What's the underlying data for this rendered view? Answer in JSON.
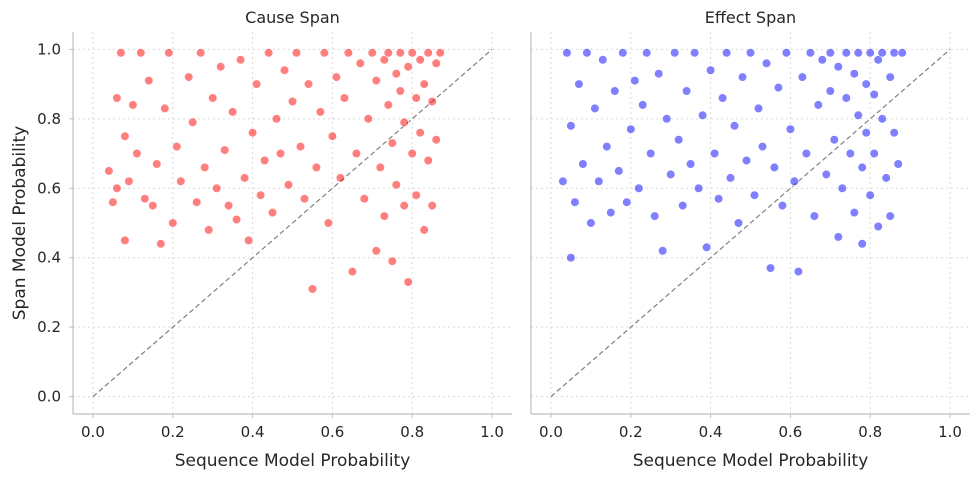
{
  "figure": {
    "ylabel_shared": "Span Model Probability"
  },
  "chart_data": [
    {
      "type": "scatter",
      "title": "Cause Span",
      "xlabel": "Sequence Model Probability",
      "ylabel": "Span Model Probability",
      "xlim": [
        -0.05,
        1.05
      ],
      "ylim": [
        -0.05,
        1.05
      ],
      "xticks": [
        0.0,
        0.2,
        0.4,
        0.6,
        0.8,
        1.0
      ],
      "yticks": [
        0.0,
        0.2,
        0.4,
        0.6,
        0.8,
        1.0
      ],
      "xtick_labels": [
        "0.0",
        "0.2",
        "0.4",
        "0.6",
        "0.8",
        "1.0"
      ],
      "ytick_labels": [
        "0.0",
        "0.2",
        "0.4",
        "0.6",
        "0.8",
        "1.0"
      ],
      "grid": true,
      "reference_line": {
        "from": [
          0,
          0
        ],
        "to": [
          1,
          1
        ],
        "style": "dashed",
        "color": "#7f7f7f"
      },
      "color": "#ff0000",
      "points": [
        [
          0.04,
          0.65
        ],
        [
          0.05,
          0.56
        ],
        [
          0.06,
          0.6
        ],
        [
          0.06,
          0.86
        ],
        [
          0.07,
          0.99
        ],
        [
          0.08,
          0.45
        ],
        [
          0.08,
          0.75
        ],
        [
          0.09,
          0.62
        ],
        [
          0.1,
          0.84
        ],
        [
          0.11,
          0.7
        ],
        [
          0.12,
          0.99
        ],
        [
          0.13,
          0.57
        ],
        [
          0.14,
          0.91
        ],
        [
          0.15,
          0.55
        ],
        [
          0.16,
          0.67
        ],
        [
          0.17,
          0.44
        ],
        [
          0.18,
          0.83
        ],
        [
          0.19,
          0.99
        ],
        [
          0.2,
          0.5
        ],
        [
          0.21,
          0.72
        ],
        [
          0.22,
          0.62
        ],
        [
          0.24,
          0.92
        ],
        [
          0.25,
          0.79
        ],
        [
          0.26,
          0.56
        ],
        [
          0.27,
          0.99
        ],
        [
          0.28,
          0.66
        ],
        [
          0.29,
          0.48
        ],
        [
          0.3,
          0.86
        ],
        [
          0.31,
          0.6
        ],
        [
          0.32,
          0.95
        ],
        [
          0.33,
          0.71
        ],
        [
          0.34,
          0.55
        ],
        [
          0.35,
          0.82
        ],
        [
          0.36,
          0.51
        ],
        [
          0.37,
          0.97
        ],
        [
          0.38,
          0.63
        ],
        [
          0.39,
          0.45
        ],
        [
          0.4,
          0.76
        ],
        [
          0.41,
          0.9
        ],
        [
          0.42,
          0.58
        ],
        [
          0.43,
          0.68
        ],
        [
          0.44,
          0.99
        ],
        [
          0.45,
          0.53
        ],
        [
          0.46,
          0.8
        ],
        [
          0.47,
          0.7
        ],
        [
          0.48,
          0.94
        ],
        [
          0.49,
          0.61
        ],
        [
          0.5,
          0.85
        ],
        [
          0.51,
          0.99
        ],
        [
          0.52,
          0.72
        ],
        [
          0.53,
          0.57
        ],
        [
          0.54,
          0.9
        ],
        [
          0.55,
          0.31
        ],
        [
          0.56,
          0.66
        ],
        [
          0.57,
          0.82
        ],
        [
          0.58,
          0.99
        ],
        [
          0.59,
          0.5
        ],
        [
          0.6,
          0.75
        ],
        [
          0.61,
          0.92
        ],
        [
          0.62,
          0.63
        ],
        [
          0.63,
          0.86
        ],
        [
          0.64,
          0.99
        ],
        [
          0.65,
          0.36
        ],
        [
          0.66,
          0.7
        ],
        [
          0.67,
          0.96
        ],
        [
          0.68,
          0.57
        ],
        [
          0.69,
          0.8
        ],
        [
          0.7,
          0.99
        ],
        [
          0.71,
          0.42
        ],
        [
          0.71,
          0.91
        ],
        [
          0.72,
          0.66
        ],
        [
          0.73,
          0.97
        ],
        [
          0.73,
          0.52
        ],
        [
          0.74,
          0.84
        ],
        [
          0.74,
          0.99
        ],
        [
          0.75,
          0.73
        ],
        [
          0.75,
          0.39
        ],
        [
          0.76,
          0.93
        ],
        [
          0.76,
          0.61
        ],
        [
          0.77,
          0.88
        ],
        [
          0.77,
          0.99
        ],
        [
          0.78,
          0.55
        ],
        [
          0.78,
          0.79
        ],
        [
          0.79,
          0.95
        ],
        [
          0.79,
          0.33
        ],
        [
          0.8,
          0.7
        ],
        [
          0.8,
          0.99
        ],
        [
          0.81,
          0.86
        ],
        [
          0.81,
          0.58
        ],
        [
          0.82,
          0.97
        ],
        [
          0.82,
          0.76
        ],
        [
          0.83,
          0.9
        ],
        [
          0.83,
          0.48
        ],
        [
          0.84,
          0.99
        ],
        [
          0.84,
          0.68
        ],
        [
          0.85,
          0.85
        ],
        [
          0.85,
          0.55
        ],
        [
          0.86,
          0.96
        ],
        [
          0.86,
          0.74
        ],
        [
          0.87,
          0.99
        ]
      ]
    },
    {
      "type": "scatter",
      "title": "Effect Span",
      "xlabel": "Sequence Model Probability",
      "ylabel": "",
      "xlim": [
        -0.05,
        1.05
      ],
      "ylim": [
        -0.05,
        1.05
      ],
      "xticks": [
        0.0,
        0.2,
        0.4,
        0.6,
        0.8,
        1.0
      ],
      "xtick_labels": [
        "0.0",
        "0.2",
        "0.4",
        "0.6",
        "0.8",
        "1.0"
      ],
      "grid": true,
      "reference_line": {
        "from": [
          0,
          0
        ],
        "to": [
          1,
          1
        ],
        "style": "dashed",
        "color": "#7f7f7f"
      },
      "color": "#0000ff",
      "points": [
        [
          0.03,
          0.62
        ],
        [
          0.04,
          0.99
        ],
        [
          0.05,
          0.4
        ],
        [
          0.05,
          0.78
        ],
        [
          0.06,
          0.56
        ],
        [
          0.07,
          0.9
        ],
        [
          0.08,
          0.67
        ],
        [
          0.09,
          0.99
        ],
        [
          0.1,
          0.5
        ],
        [
          0.11,
          0.83
        ],
        [
          0.12,
          0.62
        ],
        [
          0.13,
          0.97
        ],
        [
          0.14,
          0.72
        ],
        [
          0.15,
          0.53
        ],
        [
          0.16,
          0.88
        ],
        [
          0.17,
          0.65
        ],
        [
          0.18,
          0.99
        ],
        [
          0.19,
          0.56
        ],
        [
          0.2,
          0.77
        ],
        [
          0.21,
          0.91
        ],
        [
          0.22,
          0.6
        ],
        [
          0.23,
          0.84
        ],
        [
          0.24,
          0.99
        ],
        [
          0.25,
          0.7
        ],
        [
          0.26,
          0.52
        ],
        [
          0.27,
          0.93
        ],
        [
          0.28,
          0.42
        ],
        [
          0.29,
          0.8
        ],
        [
          0.3,
          0.64
        ],
        [
          0.31,
          0.99
        ],
        [
          0.32,
          0.74
        ],
        [
          0.33,
          0.55
        ],
        [
          0.34,
          0.88
        ],
        [
          0.35,
          0.67
        ],
        [
          0.36,
          0.99
        ],
        [
          0.37,
          0.6
        ],
        [
          0.38,
          0.81
        ],
        [
          0.39,
          0.43
        ],
        [
          0.4,
          0.94
        ],
        [
          0.41,
          0.7
        ],
        [
          0.42,
          0.57
        ],
        [
          0.43,
          0.86
        ],
        [
          0.44,
          0.99
        ],
        [
          0.45,
          0.63
        ],
        [
          0.46,
          0.78
        ],
        [
          0.47,
          0.5
        ],
        [
          0.48,
          0.92
        ],
        [
          0.49,
          0.68
        ],
        [
          0.5,
          0.99
        ],
        [
          0.51,
          0.58
        ],
        [
          0.52,
          0.83
        ],
        [
          0.53,
          0.72
        ],
        [
          0.54,
          0.96
        ],
        [
          0.55,
          0.37
        ],
        [
          0.56,
          0.66
        ],
        [
          0.57,
          0.89
        ],
        [
          0.58,
          0.55
        ],
        [
          0.59,
          0.99
        ],
        [
          0.6,
          0.77
        ],
        [
          0.61,
          0.62
        ],
        [
          0.62,
          0.36
        ],
        [
          0.63,
          0.92
        ],
        [
          0.64,
          0.7
        ],
        [
          0.65,
          0.99
        ],
        [
          0.66,
          0.52
        ],
        [
          0.67,
          0.84
        ],
        [
          0.68,
          0.97
        ],
        [
          0.69,
          0.64
        ],
        [
          0.7,
          0.88
        ],
        [
          0.7,
          0.99
        ],
        [
          0.71,
          0.74
        ],
        [
          0.72,
          0.46
        ],
        [
          0.72,
          0.95
        ],
        [
          0.73,
          0.6
        ],
        [
          0.74,
          0.86
        ],
        [
          0.74,
          0.99
        ],
        [
          0.75,
          0.7
        ],
        [
          0.76,
          0.93
        ],
        [
          0.76,
          0.53
        ],
        [
          0.77,
          0.81
        ],
        [
          0.77,
          0.99
        ],
        [
          0.78,
          0.66
        ],
        [
          0.78,
          0.44
        ],
        [
          0.79,
          0.9
        ],
        [
          0.79,
          0.76
        ],
        [
          0.8,
          0.99
        ],
        [
          0.8,
          0.58
        ],
        [
          0.81,
          0.87
        ],
        [
          0.81,
          0.7
        ],
        [
          0.82,
          0.97
        ],
        [
          0.82,
          0.49
        ],
        [
          0.83,
          0.8
        ],
        [
          0.83,
          0.99
        ],
        [
          0.84,
          0.63
        ],
        [
          0.85,
          0.92
        ],
        [
          0.85,
          0.52
        ],
        [
          0.86,
          0.76
        ],
        [
          0.86,
          0.99
        ],
        [
          0.87,
          0.67
        ],
        [
          0.88,
          0.99
        ]
      ]
    }
  ]
}
